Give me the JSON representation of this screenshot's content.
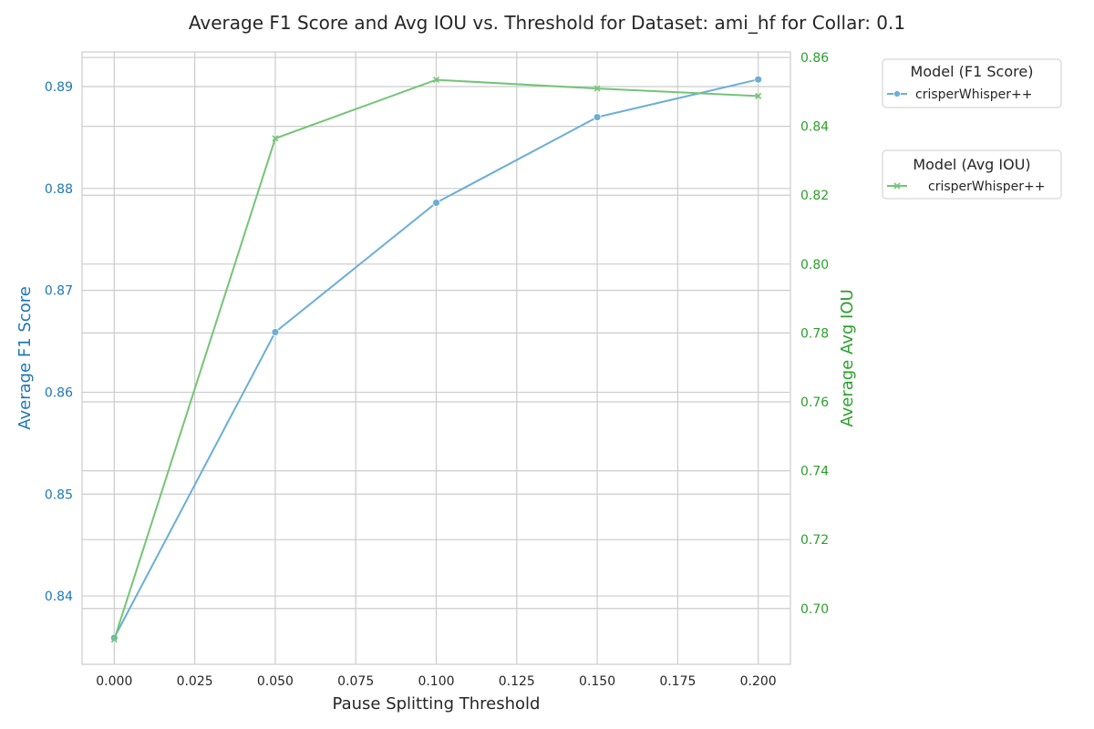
{
  "chart_data": {
    "type": "line",
    "title": "Average F1 Score and Avg IOU vs. Threshold for Dataset: ami_hf for Collar: 0.1",
    "xlabel": "Pause Splitting Threshold",
    "ylabel_left": "Average F1 Score",
    "ylabel_right": "Average Avg IOU",
    "x": [
      0.0,
      0.05,
      0.1,
      0.15,
      0.2
    ],
    "xlim": [
      -0.01,
      0.21
    ],
    "x_ticks": [
      "0.000",
      "0.025",
      "0.050",
      "0.075",
      "0.100",
      "0.125",
      "0.150",
      "0.175",
      "0.200"
    ],
    "ylim_left": [
      0.8333,
      0.8934
    ],
    "ylim_right": [
      0.6838,
      0.8616
    ],
    "y_ticks_left": [
      "0.84",
      "0.85",
      "0.86",
      "0.87",
      "0.88",
      "0.89"
    ],
    "y_ticks_right": [
      "0.70",
      "0.72",
      "0.74",
      "0.76",
      "0.78",
      "0.80",
      "0.82",
      "0.84",
      "0.86"
    ],
    "grid": true,
    "series": [
      {
        "name": "crisperWhisper++",
        "axis": "left",
        "marker": "circle",
        "color": "#6baed6",
        "values": [
          0.8359,
          0.8659,
          0.8786,
          0.887,
          0.8907
        ]
      },
      {
        "name": "crisperWhisper++",
        "axis": "right",
        "marker": "x",
        "color": "#74c476",
        "values": [
          0.691,
          0.8365,
          0.8535,
          0.851,
          0.8488
        ]
      }
    ],
    "legends": [
      {
        "title": "Model (F1 Score)",
        "entries": [
          "crisperWhisper++"
        ]
      },
      {
        "title": "Model (Avg IOU)",
        "entries": [
          "crisperWhisper++"
        ]
      }
    ],
    "legend_placement": "outside-right-top"
  }
}
